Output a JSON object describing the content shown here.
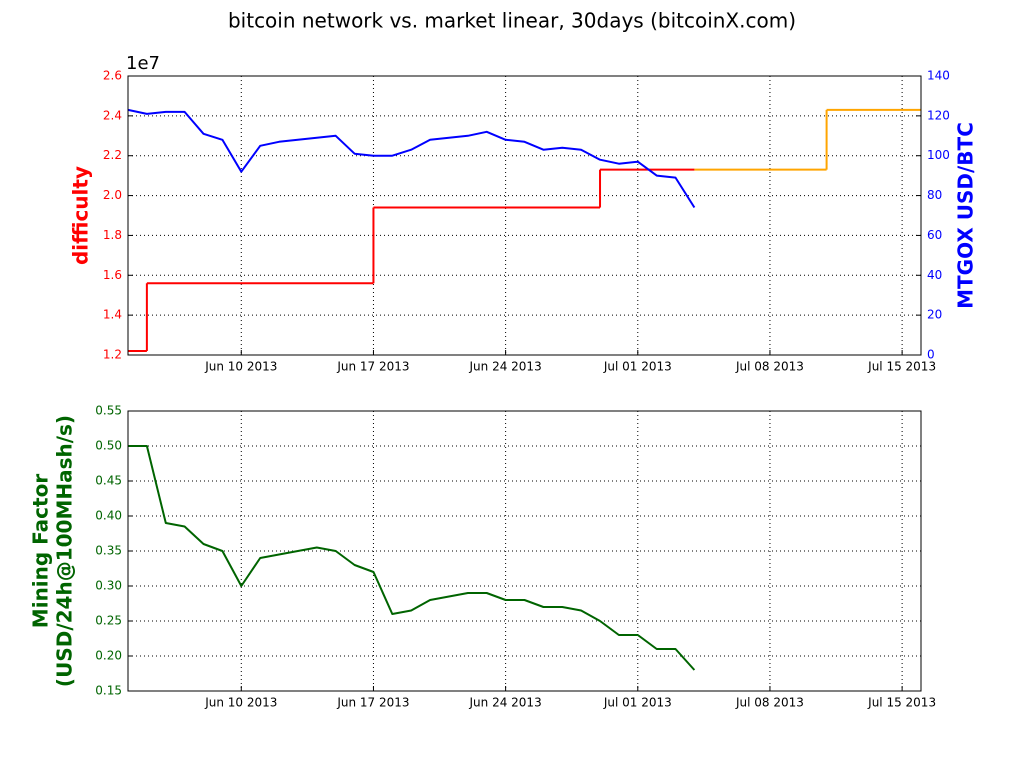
{
  "chart_data": [
    {
      "type": "line",
      "title": "bitcoin network vs. market linear, 30days (bitcoinX.com)",
      "offset_text": "1e7",
      "ylabel": "difficulty",
      "ylabel_color": "#ff0000",
      "y2label": "MTGOX USD/BTC",
      "y2label_color": "#0000ff",
      "xlim": [
        "2013-06-04",
        "2013-07-16"
      ],
      "xticks": [
        {
          "value": "2013-06-10",
          "label": "Jun 10 2013"
        },
        {
          "value": "2013-06-17",
          "label": "Jun 17 2013"
        },
        {
          "value": "2013-06-24",
          "label": "Jun 24 2013"
        },
        {
          "value": "2013-07-01",
          "label": "Jul 01 2013"
        },
        {
          "value": "2013-07-08",
          "label": "Jul 08 2013"
        },
        {
          "value": "2013-07-15",
          "label": "Jul 15 2013"
        }
      ],
      "ylim": [
        1.2,
        2.6
      ],
      "yticks": [
        1.2,
        1.4,
        1.6,
        1.8,
        {
          "value": 2,
          "label": "2.0"
        },
        2.2,
        2.4,
        2.6
      ],
      "y2lim": [
        0,
        140
      ],
      "y2ticks": [
        0,
        20,
        40,
        60,
        80,
        100,
        120,
        140
      ],
      "grid": true,
      "series": [
        {
          "color": "#ff0000",
          "step": true,
          "x": [
            "2013-06-04",
            "2013-06-05",
            "2013-06-17",
            "2013-06-29"
          ],
          "x_end": "2013-07-04",
          "values": [
            1.22,
            1.56,
            1.94,
            2.13
          ]
        },
        {
          "color": "#ffa500",
          "step": true,
          "x": [
            "2013-07-04",
            "2013-07-11"
          ],
          "x_end": "2013-07-16",
          "values": [
            2.13,
            2.43
          ]
        },
        {
          "color": "#0000ff",
          "axis": "y2",
          "x": [
            "2013-06-04",
            "2013-06-05",
            "2013-06-06",
            "2013-06-07",
            "2013-06-08",
            "2013-06-09",
            "2013-06-10",
            "2013-06-11",
            "2013-06-12",
            "2013-06-13",
            "2013-06-14",
            "2013-06-15",
            "2013-06-16",
            "2013-06-17",
            "2013-06-18",
            "2013-06-19",
            "2013-06-20",
            "2013-06-21",
            "2013-06-22",
            "2013-06-23",
            "2013-06-24",
            "2013-06-25",
            "2013-06-26",
            "2013-06-27",
            "2013-06-28",
            "2013-06-29",
            "2013-06-30",
            "2013-07-01",
            "2013-07-02",
            "2013-07-03",
            "2013-07-04"
          ],
          "values": [
            123,
            121,
            122,
            122,
            111,
            108,
            92,
            105,
            107,
            108,
            109,
            110,
            101,
            100,
            100,
            103,
            108,
            109,
            110,
            112,
            108,
            107,
            103,
            104,
            103,
            98,
            96,
            97,
            90,
            89,
            74
          ]
        }
      ]
    },
    {
      "type": "line",
      "ylabel": [
        "Mining Factor",
        "(USD/24h@100MHash/s)"
      ],
      "ylabel_color": "#006400",
      "xlim": [
        "2013-06-04",
        "2013-07-16"
      ],
      "xticks": [
        {
          "value": "2013-06-10",
          "label": "Jun 10 2013"
        },
        {
          "value": "2013-06-17",
          "label": "Jun 17 2013"
        },
        {
          "value": "2013-06-24",
          "label": "Jun 24 2013"
        },
        {
          "value": "2013-07-01",
          "label": "Jul 01 2013"
        },
        {
          "value": "2013-07-08",
          "label": "Jul 08 2013"
        },
        {
          "value": "2013-07-15",
          "label": "Jul 15 2013"
        }
      ],
      "ylim": [
        0.15,
        0.55
      ],
      "yticks": [
        0.15,
        {
          "value": 0.2,
          "label": "0.20"
        },
        0.25,
        {
          "value": 0.3,
          "label": "0.30"
        },
        0.35,
        {
          "value": 0.4,
          "label": "0.40"
        },
        0.45,
        {
          "value": 0.5,
          "label": "0.50"
        },
        0.55
      ],
      "grid": true,
      "series": [
        {
          "color": "#006400",
          "x": [
            "2013-06-04",
            "2013-06-05",
            "2013-06-06",
            "2013-06-07",
            "2013-06-08",
            "2013-06-09",
            "2013-06-10",
            "2013-06-11",
            "2013-06-12",
            "2013-06-13",
            "2013-06-14",
            "2013-06-15",
            "2013-06-16",
            "2013-06-17",
            "2013-06-18",
            "2013-06-19",
            "2013-06-20",
            "2013-06-21",
            "2013-06-22",
            "2013-06-23",
            "2013-06-24",
            "2013-06-25",
            "2013-06-26",
            "2013-06-27",
            "2013-06-28",
            "2013-06-29",
            "2013-06-30",
            "2013-07-01",
            "2013-07-02",
            "2013-07-03",
            "2013-07-04"
          ],
          "values": [
            0.5,
            0.5,
            0.39,
            0.385,
            0.36,
            0.35,
            0.3,
            0.34,
            0.345,
            0.35,
            0.355,
            0.35,
            0.33,
            0.32,
            0.26,
            0.265,
            0.28,
            0.285,
            0.29,
            0.29,
            0.28,
            0.28,
            0.27,
            0.27,
            0.265,
            0.25,
            0.23,
            0.23,
            0.21,
            0.21,
            0.18
          ]
        }
      ]
    }
  ]
}
